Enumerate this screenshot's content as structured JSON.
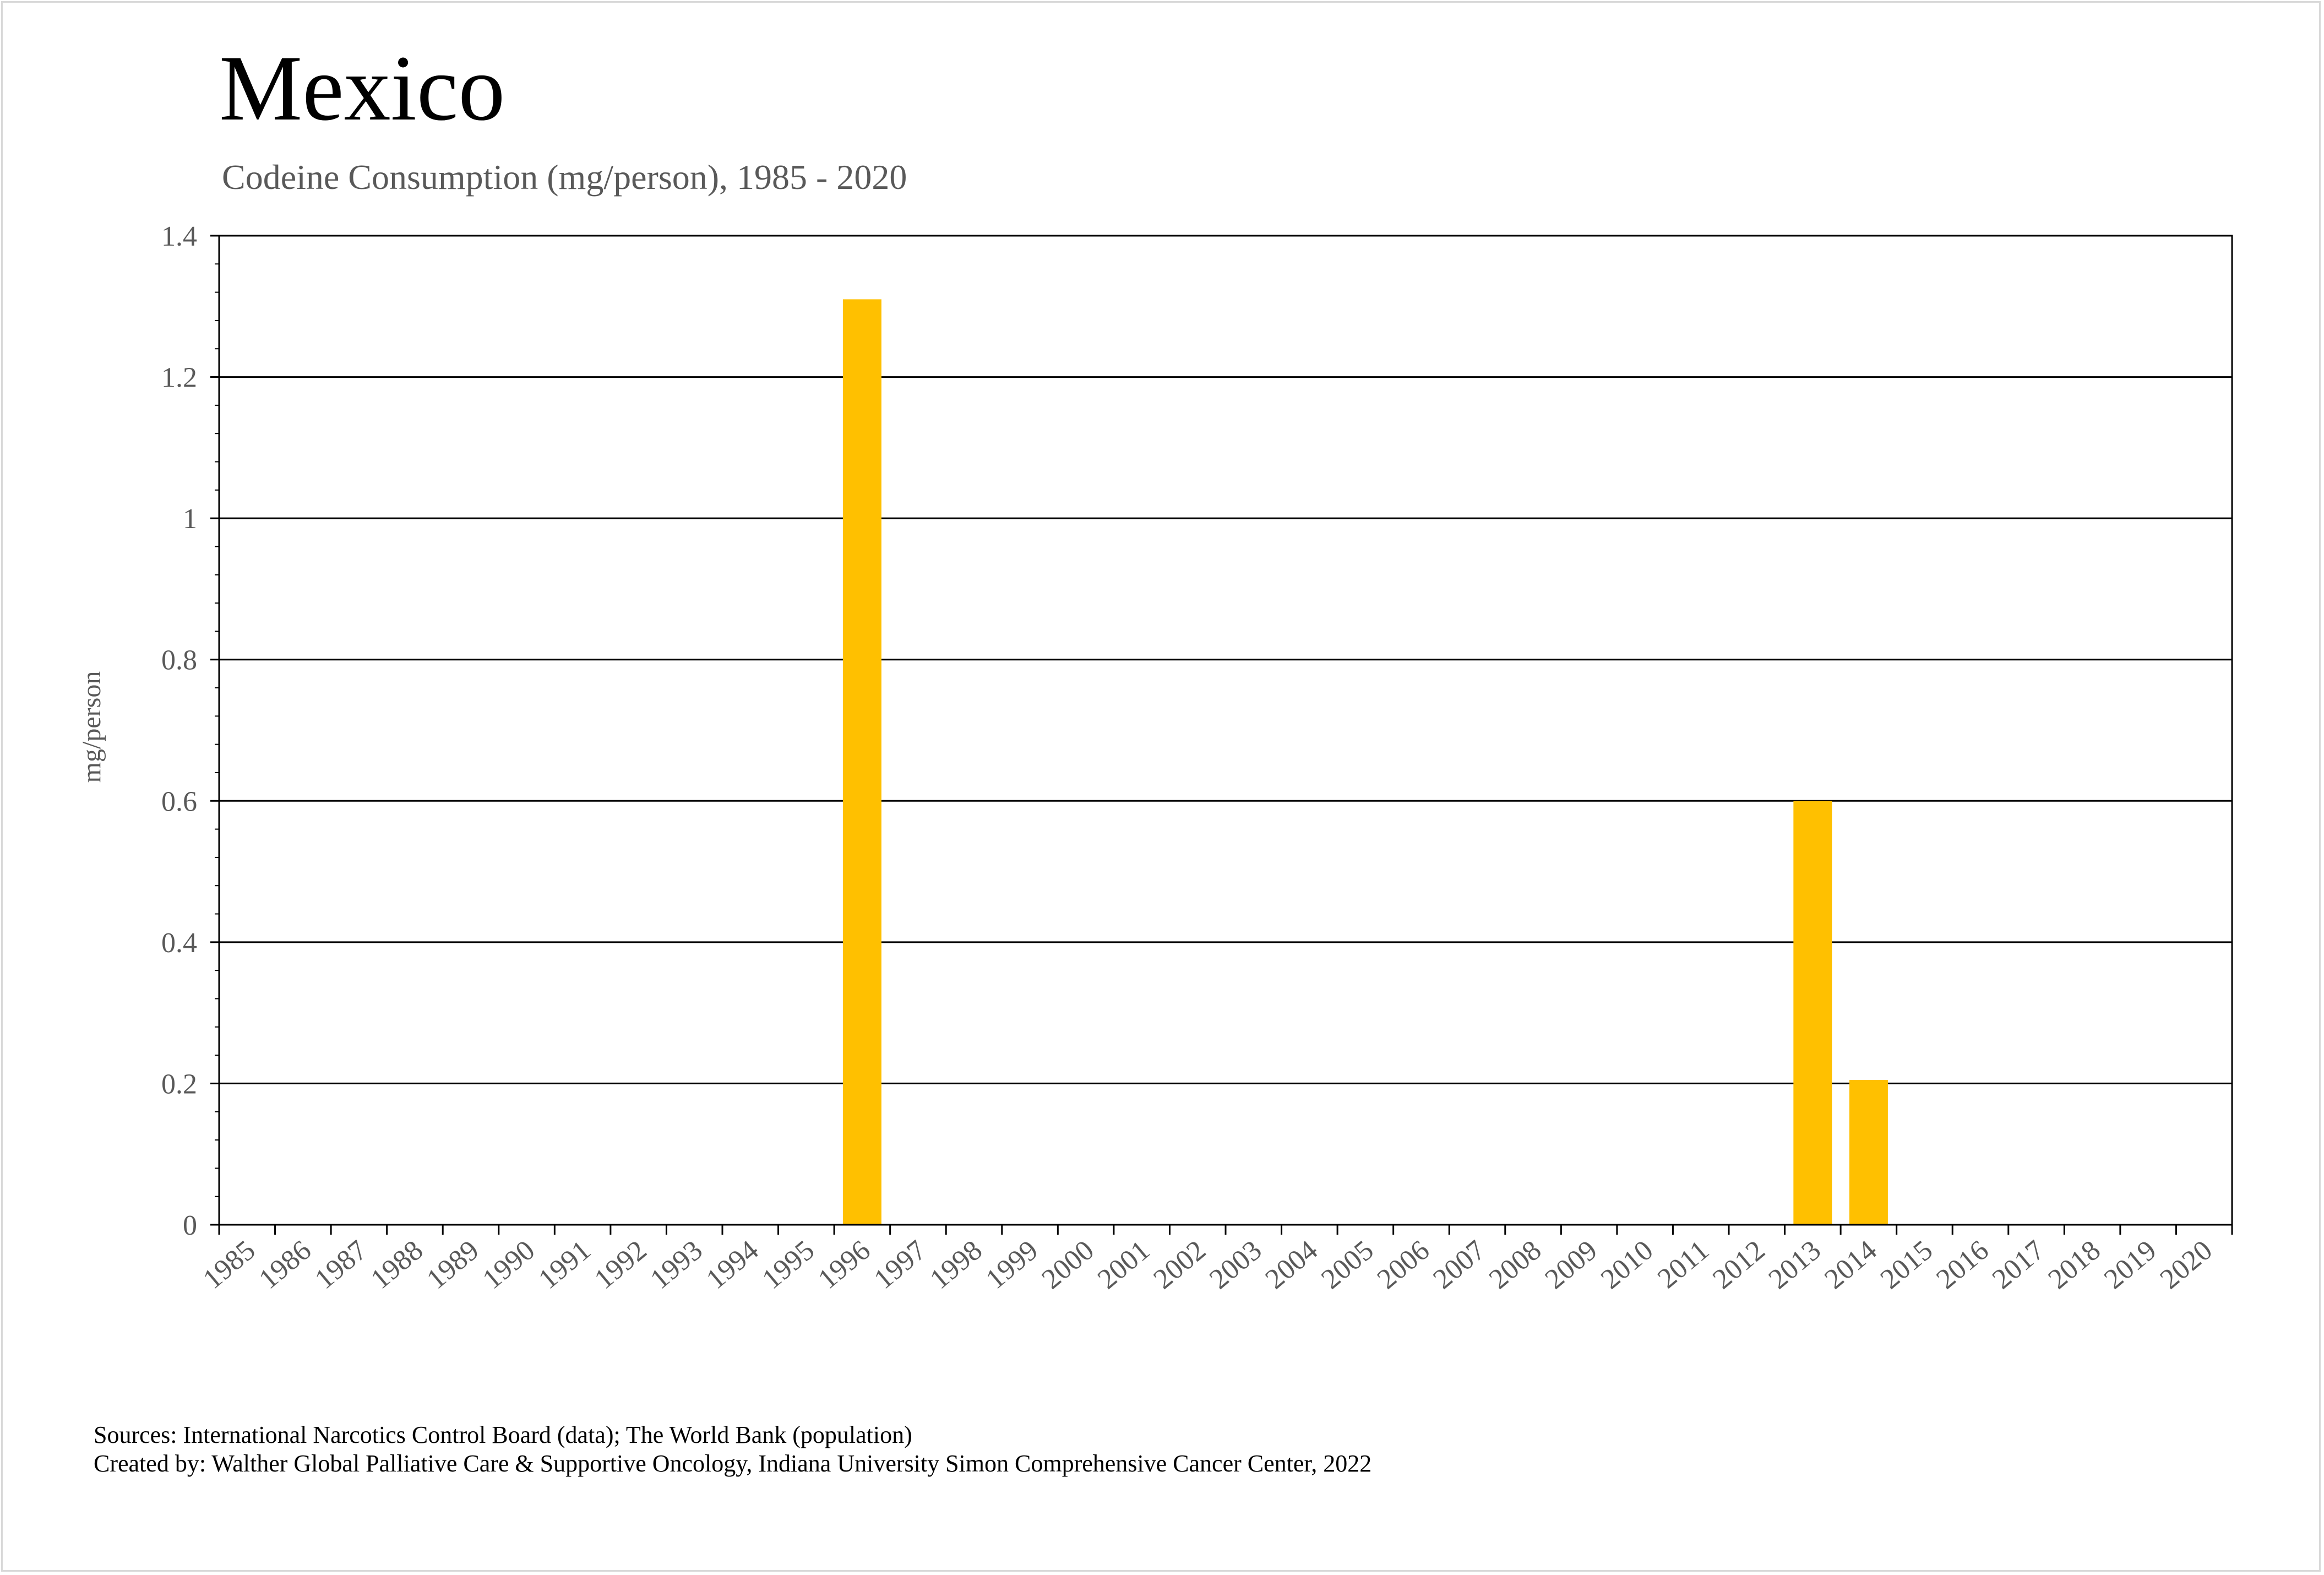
{
  "chart_data": {
    "type": "bar",
    "title": "Mexico",
    "subtitle": "Codeine Consumption (mg/person), 1985 - 2020",
    "xlabel": "",
    "ylabel": "mg/person",
    "ylim": [
      0,
      1.4
    ],
    "yticks": [
      "0",
      "0.2",
      "0.4",
      "0.6",
      "0.8",
      "1",
      "1.2",
      "1.4"
    ],
    "grid": true,
    "legend": "none",
    "bar_color": "#FFC000",
    "categories": [
      "1985",
      "1986",
      "1987",
      "1988",
      "1989",
      "1990",
      "1991",
      "1992",
      "1993",
      "1994",
      "1995",
      "1996",
      "1997",
      "1998",
      "1999",
      "2000",
      "2001",
      "2002",
      "2003",
      "2004",
      "2005",
      "2006",
      "2007",
      "2008",
      "2009",
      "2010",
      "2011",
      "2012",
      "2013",
      "2014",
      "2015",
      "2016",
      "2017",
      "2018",
      "2019",
      "2020"
    ],
    "values": [
      0,
      0,
      0,
      0,
      0,
      0,
      0,
      0,
      0,
      0,
      0,
      1.31,
      0,
      0,
      0,
      0,
      0,
      0,
      0,
      0,
      0,
      0,
      0,
      0,
      0,
      0,
      0,
      0,
      0.6,
      0.205,
      0,
      0,
      0,
      0,
      0,
      0
    ]
  },
  "footer": {
    "sources": "Sources: International Narcotics Control Board (data); The World Bank (population)",
    "created_by": "Created by: Walther Global Palliative Care & Supportive Oncology, Indiana University Simon Comprehensive Cancer Center, 2022"
  }
}
